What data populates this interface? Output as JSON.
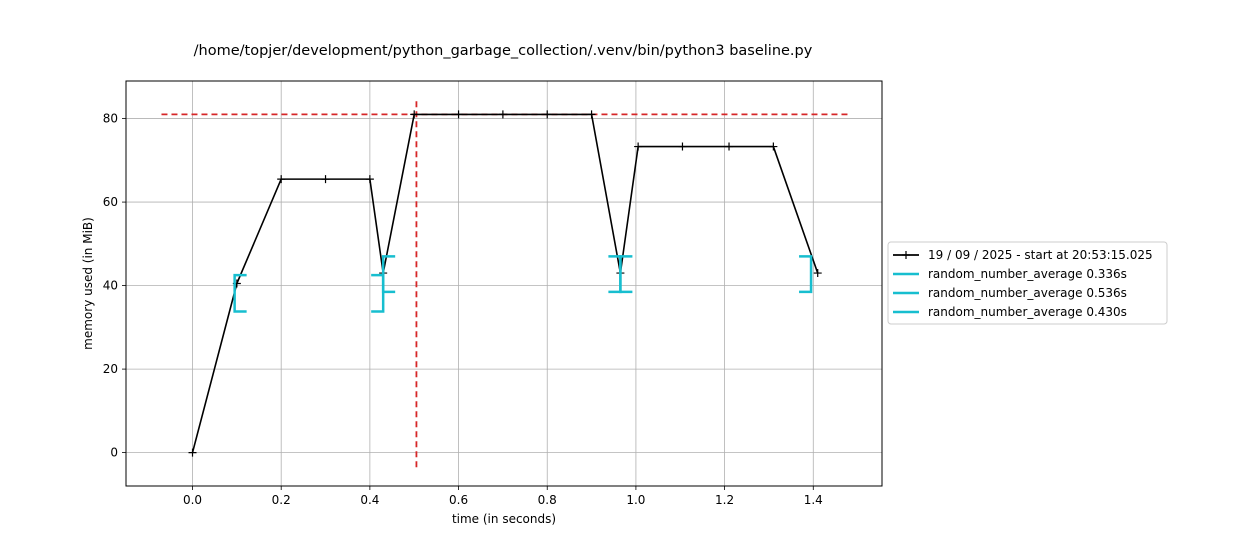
{
  "chart_data": {
    "type": "line",
    "title": "/home/topjer/development/python_garbage_collection/.venv/bin/python3 baseline.py",
    "xlabel": "time (in seconds)",
    "ylabel": "memory used (in MiB)",
    "xlim": [
      -0.15,
      1.555
    ],
    "ylim": [
      -8,
      89
    ],
    "xticks": [
      0.0,
      0.2,
      0.4,
      0.6,
      0.8,
      1.0,
      1.2,
      1.4
    ],
    "xtick_labels": [
      "0.0",
      "0.2",
      "0.4",
      "0.6",
      "0.8",
      "1.0",
      "1.2",
      "1.4"
    ],
    "yticks": [
      0,
      20,
      40,
      60,
      80
    ],
    "ytick_labels": [
      "0",
      "20",
      "40",
      "60",
      "80"
    ],
    "grid": true,
    "legend_placement": "outside-right",
    "series": [
      {
        "name": "19 / 09 / 2025 - start at 20:53:15.025",
        "color": "#000000",
        "marker": "+",
        "x": [
          0.0,
          0.1,
          0.2,
          0.3,
          0.4,
          0.43,
          0.5,
          0.6,
          0.7,
          0.8,
          0.9,
          0.965,
          1.005,
          1.105,
          1.21,
          1.31,
          1.41
        ],
        "y": [
          0.0,
          40.5,
          65.5,
          65.5,
          65.5,
          43.0,
          81.0,
          81.0,
          81.0,
          81.0,
          81.0,
          43.0,
          73.3,
          73.3,
          73.3,
          73.3,
          43.0
        ]
      }
    ],
    "brackets": [
      {
        "name": "random_number_average 0.336s",
        "color": "#17becf",
        "start": 0.095,
        "end": 0.43,
        "y_low": 33.8,
        "y_high": 42.5
      },
      {
        "name": "random_number_average 0.536s",
        "color": "#17becf",
        "start": 0.43,
        "end": 0.965,
        "y_low": 38.5,
        "y_high": 47.0
      },
      {
        "name": "random_number_average 0.430s",
        "color": "#17becf",
        "start": 0.965,
        "end": 1.395,
        "y_low": 38.5,
        "y_high": 47.0
      }
    ],
    "peak_lines": {
      "color": "#d62728",
      "horizontal_y": 81.0,
      "horizontal_x_range": [
        -0.07,
        1.48
      ],
      "vertical_x": 0.505,
      "vertical_y_range": [
        -3.5,
        85.0
      ]
    }
  }
}
